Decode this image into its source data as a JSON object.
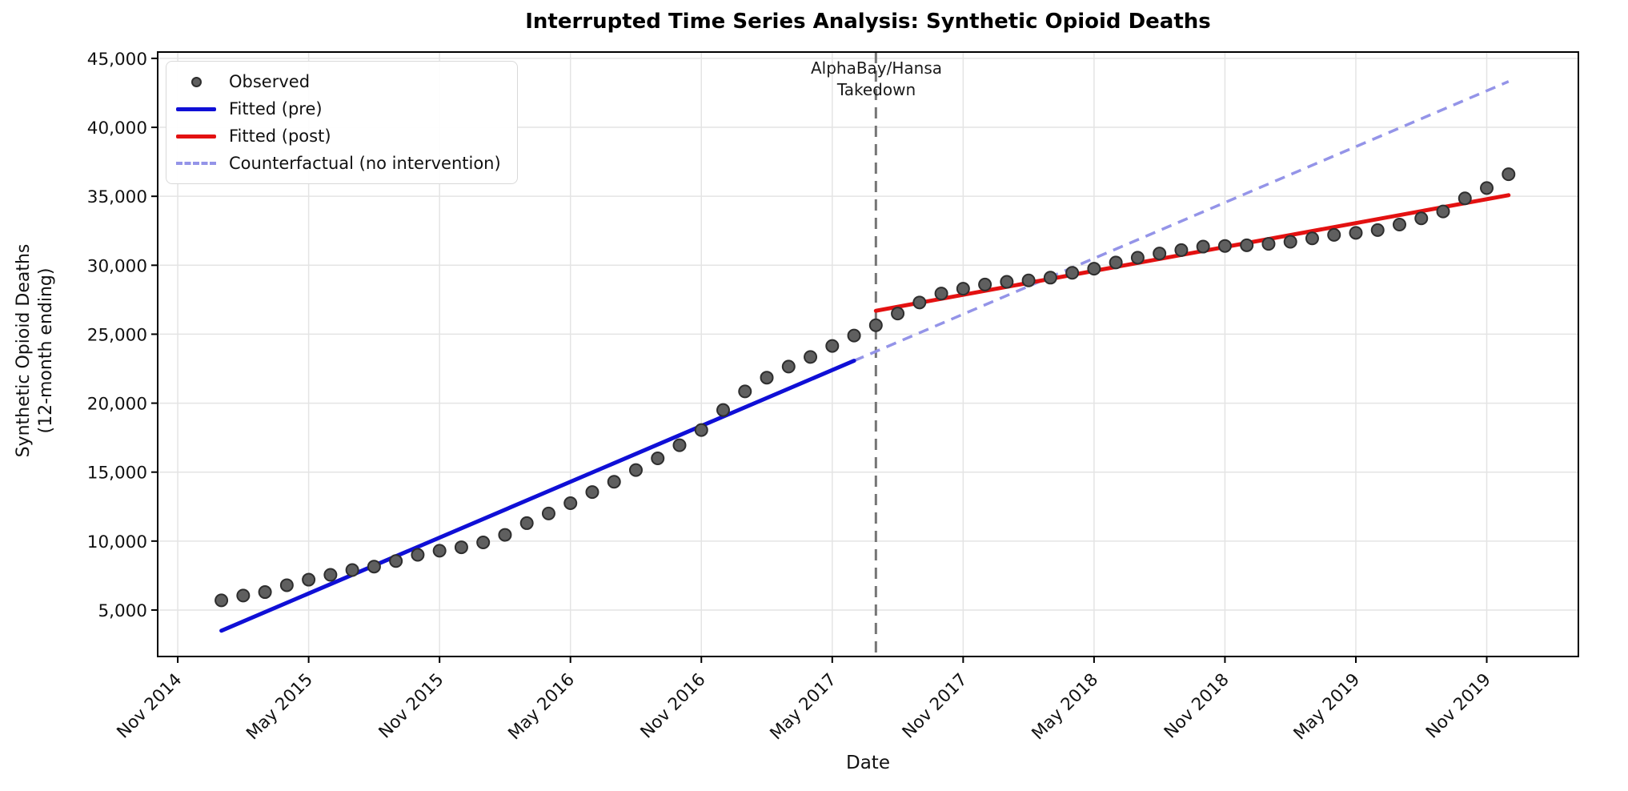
{
  "palette": {
    "blue": "#0f0fd6",
    "red": "#e31111",
    "counterfactual": "#9494e8",
    "marker_fill": "#5f5f5f",
    "marker_edge": "#2e2e2e",
    "grid": "#e4e4e4",
    "vline": "#757575",
    "spine": "#000000"
  },
  "chart_data": {
    "type": "scatter",
    "title": "Interrupted Time Series Analysis: Synthetic Opioid Deaths",
    "xlabel": "Date",
    "ylabel_lines": [
      "Synthetic Opioid Deaths",
      "(12-month ending)"
    ],
    "grid": true,
    "legend_position": "upper-left",
    "xlim_months_from_nov2014": [
      -0.92,
      64.2
    ],
    "ylim": [
      1630,
      45460
    ],
    "x_tick_labels": [
      "Nov 2014",
      "May 2015",
      "Nov 2015",
      "May 2016",
      "Nov 2016",
      "May 2017",
      "Nov 2017",
      "May 2018",
      "Nov 2018",
      "May 2019",
      "Nov 2019"
    ],
    "x_tick_months": [
      0,
      6,
      12,
      18,
      24,
      30,
      36,
      42,
      48,
      54,
      60
    ],
    "y_tick_values": [
      5000,
      10000,
      15000,
      20000,
      25000,
      30000,
      35000,
      40000,
      45000
    ],
    "y_tick_labels": [
      "5,000",
      "10,000",
      "15,000",
      "20,000",
      "25,000",
      "30,000",
      "35,000",
      "40,000",
      "45,000"
    ],
    "series": [
      {
        "name": "Observed",
        "type": "scatter",
        "months": [
          "2015-01",
          "2015-02",
          "2015-03",
          "2015-04",
          "2015-05",
          "2015-06",
          "2015-07",
          "2015-08",
          "2015-09",
          "2015-10",
          "2015-11",
          "2015-12",
          "2016-01",
          "2016-02",
          "2016-03",
          "2016-04",
          "2016-05",
          "2016-06",
          "2016-07",
          "2016-08",
          "2016-09",
          "2016-10",
          "2016-11",
          "2016-12",
          "2017-01",
          "2017-02",
          "2017-03",
          "2017-04",
          "2017-05",
          "2017-06",
          "2017-07",
          "2017-08",
          "2017-09",
          "2017-10",
          "2017-11",
          "2017-12",
          "2018-01",
          "2018-02",
          "2018-03",
          "2018-04",
          "2018-05",
          "2018-06",
          "2018-07",
          "2018-08",
          "2018-09",
          "2018-10",
          "2018-11",
          "2018-12",
          "2019-01",
          "2019-02",
          "2019-03",
          "2019-04",
          "2019-05",
          "2019-06",
          "2019-07",
          "2019-08",
          "2019-09",
          "2019-10",
          "2019-11",
          "2019-12"
        ],
        "values": [
          5700,
          6050,
          6300,
          6800,
          7200,
          7550,
          7900,
          8150,
          8550,
          9000,
          9300,
          9550,
          9900,
          10450,
          11300,
          12000,
          12750,
          13550,
          14300,
          15150,
          16000,
          16950,
          18050,
          19500,
          20850,
          21850,
          22650,
          23350,
          24150,
          24900,
          25650,
          26500,
          27300,
          27950,
          28300,
          28600,
          28800,
          28900,
          29100,
          29450,
          29750,
          30200,
          30550,
          30850,
          31100,
          31350,
          31400,
          31450,
          31550,
          31700,
          31950,
          32200,
          32350,
          32550,
          32950,
          33400,
          33900,
          34850,
          35600,
          36600
        ]
      },
      {
        "name": "Fitted (pre)",
        "type": "line",
        "style": "solid",
        "color_key": "blue",
        "months": [
          "2015-01",
          "2017-06"
        ],
        "values": [
          3500,
          23075
        ]
      },
      {
        "name": "Fitted (post)",
        "type": "line",
        "style": "solid",
        "color_key": "red",
        "months": [
          "2017-07",
          "2019-12"
        ],
        "values": [
          26700,
          35080
        ]
      },
      {
        "name": "Counterfactual (no intervention)",
        "type": "line",
        "style": "dashed",
        "color_key": "counterfactual",
        "months": [
          "2017-06",
          "2019-12"
        ],
        "values": [
          23075,
          43325
        ]
      }
    ],
    "intervention": {
      "month": "2017-07",
      "annotation_lines": [
        "AlphaBay/Hansa",
        "Takedown"
      ]
    },
    "legend": [
      {
        "label": "Observed",
        "swatch": "dot",
        "color_key": "marker_fill"
      },
      {
        "label": "Fitted (pre)",
        "swatch": "line",
        "color_key": "blue"
      },
      {
        "label": "Fitted (post)",
        "swatch": "line",
        "color_key": "red"
      },
      {
        "label": "Counterfactual (no intervention)",
        "swatch": "dash",
        "color_key": "counterfactual"
      }
    ]
  }
}
